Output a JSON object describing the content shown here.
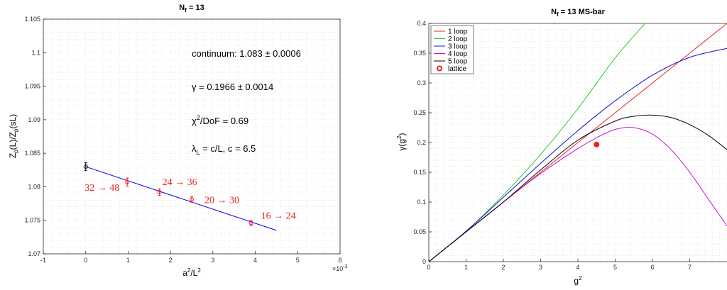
{
  "chart_data": [
    {
      "type": "scatter",
      "title": "N_f = 13",
      "title_main": "N",
      "title_sub": "f",
      "title_rest": " = 13",
      "xlabel": "a²/L²",
      "xlabel_base": "a",
      "xlabel_sup": "2",
      "xlabel_mid": "/L",
      "xlabel_sup2": "2",
      "ylabel": "Z_p(L)/Z_p(sL)",
      "ylabel_a": "Z",
      "ylabel_b": "p",
      "ylabel_c": "(L)/Z",
      "ylabel_d": "p",
      "ylabel_e": "(sL)",
      "xlim": [
        -1,
        6
      ],
      "ylim": [
        1.07,
        1.105
      ],
      "x_multiplier": "×10",
      "x_multiplier_exp": "-3",
      "xticks": [
        "-1",
        "0",
        "1",
        "2",
        "3",
        "4",
        "5",
        "6"
      ],
      "yticks": [
        "1.07",
        "1.075",
        "1.08",
        "1.085",
        "1.09",
        "1.095",
        "1.1",
        "1.105"
      ],
      "grid": true,
      "points": [
        {
          "x": 0.0,
          "y": 1.083,
          "err": 0.0006,
          "color": "#000000",
          "label": ""
        },
        {
          "x": 0.98,
          "y": 1.0807,
          "err": 0.0006,
          "color": "#e8231f",
          "label": "32 → 48"
        },
        {
          "x": 1.74,
          "y": 1.0792,
          "err": 0.0005,
          "color": "#e8231f",
          "label": "24 → 36"
        },
        {
          "x": 2.5,
          "y": 1.0781,
          "err": 0.0004,
          "color": "#e8231f",
          "label": "20 → 30"
        },
        {
          "x": 3.9,
          "y": 1.0746,
          "err": 0.0004,
          "color": "#e8231f",
          "label": "16 → 24"
        }
      ],
      "fit_line": {
        "x": [
          0,
          4.5
        ],
        "y": [
          1.083,
          1.0735
        ],
        "color": "#0000ff"
      },
      "annotations": {
        "continuum": "continuum: 1.083 ± 0.0006",
        "gamma": "γ = 0.1966 ± 0.0014",
        "chi_a": "χ",
        "chi_sup": "2",
        "chi_b": "/DoF = 0.69",
        "lambda_a": "λ",
        "lambda_sub": "L",
        "lambda_b": " = c/L, c = 6.5"
      }
    },
    {
      "type": "line",
      "title": "N_f = 13   MS-bar",
      "title_main": "N",
      "title_sub": "f",
      "title_rest": " = 13   MS-bar",
      "xlabel": "g²",
      "xlabel_base": "g",
      "xlabel_sup": "2",
      "ylabel": "γ(g²)",
      "ylabel_a": "γ(g",
      "ylabel_sup": "2",
      "ylabel_b": ")",
      "xlim": [
        0,
        8
      ],
      "ylim": [
        0,
        0.4
      ],
      "xticks": [
        "0",
        "1",
        "2",
        "3",
        "4",
        "5",
        "6",
        "7"
      ],
      "yticks": [
        "0",
        "0.05",
        "0.1",
        "0.15",
        "0.2",
        "0.25",
        "0.3",
        "0.35",
        "0.4"
      ],
      "grid": true,
      "legend_position": "top-left",
      "series": [
        {
          "name": "1 loop",
          "color": "#e8231f",
          "x": [
            0,
            1,
            2,
            3,
            4,
            5,
            6,
            7,
            8
          ],
          "y": [
            0,
            0.05,
            0.1,
            0.15,
            0.2,
            0.25,
            0.3,
            0.35,
            0.4
          ]
        },
        {
          "name": "2 loop",
          "color": "#22cc22",
          "x": [
            0,
            1,
            2,
            3,
            4,
            5,
            5.8
          ],
          "y": [
            0,
            0.051,
            0.112,
            0.18,
            0.257,
            0.342,
            0.4
          ]
        },
        {
          "name": "3 loop",
          "color": "#1010cc",
          "x": [
            0,
            1,
            2,
            3,
            4,
            5,
            6,
            7,
            8
          ],
          "y": [
            0,
            0.051,
            0.108,
            0.165,
            0.22,
            0.27,
            0.313,
            0.343,
            0.358
          ]
        },
        {
          "name": "4 loop",
          "color": "#cc11cc",
          "x": [
            0,
            1,
            2,
            3,
            4,
            4.5,
            5,
            5.5,
            6,
            6.5,
            7,
            7.5,
            8
          ],
          "y": [
            0,
            0.05,
            0.1,
            0.148,
            0.19,
            0.208,
            0.222,
            0.225,
            0.214,
            0.188,
            0.15,
            0.105,
            0.06
          ]
        },
        {
          "name": "5 loop",
          "color": "#000000",
          "x": [
            0,
            1,
            2,
            3,
            4,
            5,
            5.5,
            6,
            6.5,
            7,
            7.5,
            8
          ],
          "y": [
            0,
            0.05,
            0.1,
            0.154,
            0.204,
            0.236,
            0.244,
            0.246,
            0.242,
            0.23,
            0.212,
            0.188
          ]
        }
      ],
      "lattice_point": {
        "name": "lattice",
        "x": 4.5,
        "y": 0.1966,
        "color": "#e8231f"
      }
    }
  ]
}
